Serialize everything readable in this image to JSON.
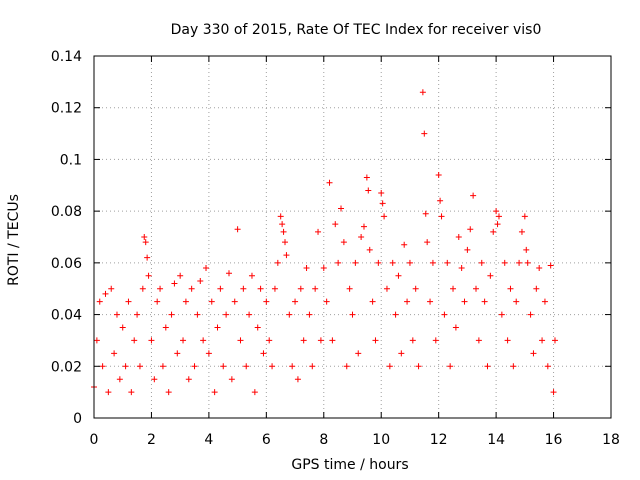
{
  "chart_data": {
    "type": "scatter",
    "title": "Day 330 of 2015, Rate Of TEC Index for receiver vis0",
    "xlabel": "GPS time / hours",
    "ylabel": "ROTI / TECUs",
    "xlim": [
      0,
      18
    ],
    "ylim": [
      0,
      0.14
    ],
    "xticks": [
      0,
      2,
      4,
      6,
      8,
      10,
      12,
      14,
      16,
      18
    ],
    "xtick_labels": [
      "0",
      "2",
      "4",
      "6",
      "8",
      "10",
      "12",
      "14",
      "16",
      "18"
    ],
    "yticks": [
      0,
      0.02,
      0.04,
      0.06,
      0.08,
      0.1,
      0.12,
      0.14
    ],
    "ytick_labels": [
      "0",
      "0.02",
      "0.04",
      "0.06",
      "0.08",
      "0.1",
      "0.12",
      "0.14"
    ],
    "grid": true,
    "marker": "+",
    "color": "#ff0000",
    "series": [
      {
        "name": "ROTI",
        "points": [
          [
            0.0,
            0.012
          ],
          [
            0.1,
            0.03
          ],
          [
            0.2,
            0.045
          ],
          [
            0.3,
            0.02
          ],
          [
            0.4,
            0.048
          ],
          [
            0.5,
            0.01
          ],
          [
            0.6,
            0.05
          ],
          [
            0.7,
            0.025
          ],
          [
            0.8,
            0.04
          ],
          [
            0.9,
            0.015
          ],
          [
            1.0,
            0.035
          ],
          [
            1.1,
            0.02
          ],
          [
            1.2,
            0.045
          ],
          [
            1.3,
            0.01
          ],
          [
            1.4,
            0.03
          ],
          [
            1.5,
            0.04
          ],
          [
            1.6,
            0.02
          ],
          [
            1.7,
            0.05
          ],
          [
            1.75,
            0.07
          ],
          [
            1.8,
            0.068
          ],
          [
            1.85,
            0.062
          ],
          [
            1.9,
            0.055
          ],
          [
            2.0,
            0.03
          ],
          [
            2.1,
            0.015
          ],
          [
            2.2,
            0.045
          ],
          [
            2.3,
            0.05
          ],
          [
            2.4,
            0.02
          ],
          [
            2.5,
            0.035
          ],
          [
            2.6,
            0.01
          ],
          [
            2.7,
            0.04
          ],
          [
            2.8,
            0.052
          ],
          [
            2.9,
            0.025
          ],
          [
            3.0,
            0.055
          ],
          [
            3.1,
            0.03
          ],
          [
            3.2,
            0.045
          ],
          [
            3.3,
            0.015
          ],
          [
            3.4,
            0.05
          ],
          [
            3.5,
            0.02
          ],
          [
            3.6,
            0.04
          ],
          [
            3.7,
            0.053
          ],
          [
            3.8,
            0.03
          ],
          [
            3.9,
            0.058
          ],
          [
            4.0,
            0.025
          ],
          [
            4.1,
            0.045
          ],
          [
            4.2,
            0.01
          ],
          [
            4.3,
            0.035
          ],
          [
            4.4,
            0.05
          ],
          [
            4.5,
            0.02
          ],
          [
            4.6,
            0.04
          ],
          [
            4.7,
            0.056
          ],
          [
            4.8,
            0.015
          ],
          [
            4.9,
            0.045
          ],
          [
            5.0,
            0.073
          ],
          [
            5.1,
            0.03
          ],
          [
            5.2,
            0.05
          ],
          [
            5.3,
            0.02
          ],
          [
            5.4,
            0.04
          ],
          [
            5.5,
            0.055
          ],
          [
            5.6,
            0.01
          ],
          [
            5.7,
            0.035
          ],
          [
            5.8,
            0.05
          ],
          [
            5.9,
            0.025
          ],
          [
            6.0,
            0.045
          ],
          [
            6.1,
            0.03
          ],
          [
            6.2,
            0.02
          ],
          [
            6.3,
            0.05
          ],
          [
            6.4,
            0.06
          ],
          [
            6.5,
            0.078
          ],
          [
            6.55,
            0.075
          ],
          [
            6.6,
            0.072
          ],
          [
            6.65,
            0.068
          ],
          [
            6.7,
            0.063
          ],
          [
            6.8,
            0.04
          ],
          [
            6.9,
            0.02
          ],
          [
            7.0,
            0.045
          ],
          [
            7.1,
            0.015
          ],
          [
            7.2,
            0.05
          ],
          [
            7.3,
            0.03
          ],
          [
            7.4,
            0.058
          ],
          [
            7.5,
            0.04
          ],
          [
            7.6,
            0.02
          ],
          [
            7.7,
            0.05
          ],
          [
            7.8,
            0.072
          ],
          [
            7.9,
            0.03
          ],
          [
            8.0,
            0.058
          ],
          [
            8.1,
            0.045
          ],
          [
            8.2,
            0.091
          ],
          [
            8.3,
            0.03
          ],
          [
            8.4,
            0.075
          ],
          [
            8.5,
            0.06
          ],
          [
            8.6,
            0.081
          ],
          [
            8.7,
            0.068
          ],
          [
            8.8,
            0.02
          ],
          [
            8.9,
            0.05
          ],
          [
            9.0,
            0.04
          ],
          [
            9.1,
            0.06
          ],
          [
            9.2,
            0.025
          ],
          [
            9.3,
            0.07
          ],
          [
            9.4,
            0.074
          ],
          [
            9.5,
            0.093
          ],
          [
            9.55,
            0.088
          ],
          [
            9.6,
            0.065
          ],
          [
            9.7,
            0.045
          ],
          [
            9.8,
            0.03
          ],
          [
            9.9,
            0.06
          ],
          [
            10.0,
            0.087
          ],
          [
            10.05,
            0.083
          ],
          [
            10.1,
            0.078
          ],
          [
            10.2,
            0.05
          ],
          [
            10.3,
            0.02
          ],
          [
            10.4,
            0.06
          ],
          [
            10.5,
            0.04
          ],
          [
            10.6,
            0.055
          ],
          [
            10.7,
            0.025
          ],
          [
            10.8,
            0.067
          ],
          [
            10.9,
            0.045
          ],
          [
            11.0,
            0.06
          ],
          [
            11.1,
            0.03
          ],
          [
            11.2,
            0.05
          ],
          [
            11.3,
            0.02
          ],
          [
            11.45,
            0.126
          ],
          [
            11.5,
            0.11
          ],
          [
            11.55,
            0.079
          ],
          [
            11.6,
            0.068
          ],
          [
            11.7,
            0.045
          ],
          [
            11.8,
            0.06
          ],
          [
            11.9,
            0.03
          ],
          [
            12.0,
            0.094
          ],
          [
            12.05,
            0.084
          ],
          [
            12.1,
            0.078
          ],
          [
            12.2,
            0.04
          ],
          [
            12.3,
            0.06
          ],
          [
            12.4,
            0.02
          ],
          [
            12.5,
            0.05
          ],
          [
            12.6,
            0.035
          ],
          [
            12.7,
            0.07
          ],
          [
            12.8,
            0.058
          ],
          [
            12.9,
            0.045
          ],
          [
            13.0,
            0.065
          ],
          [
            13.1,
            0.073
          ],
          [
            13.2,
            0.086
          ],
          [
            13.3,
            0.05
          ],
          [
            13.4,
            0.03
          ],
          [
            13.5,
            0.06
          ],
          [
            13.6,
            0.045
          ],
          [
            13.7,
            0.02
          ],
          [
            13.8,
            0.055
          ],
          [
            13.9,
            0.072
          ],
          [
            14.0,
            0.08
          ],
          [
            14.05,
            0.075
          ],
          [
            14.1,
            0.078
          ],
          [
            14.2,
            0.04
          ],
          [
            14.3,
            0.06
          ],
          [
            14.4,
            0.03
          ],
          [
            14.5,
            0.05
          ],
          [
            14.6,
            0.02
          ],
          [
            14.7,
            0.045
          ],
          [
            14.8,
            0.06
          ],
          [
            14.9,
            0.072
          ],
          [
            15.0,
            0.078
          ],
          [
            15.05,
            0.065
          ],
          [
            15.1,
            0.06
          ],
          [
            15.2,
            0.04
          ],
          [
            15.3,
            0.025
          ],
          [
            15.4,
            0.05
          ],
          [
            15.5,
            0.058
          ],
          [
            15.6,
            0.03
          ],
          [
            15.7,
            0.045
          ],
          [
            15.8,
            0.02
          ],
          [
            15.9,
            0.059
          ],
          [
            16.0,
            0.01
          ],
          [
            16.05,
            0.03
          ]
        ]
      }
    ]
  }
}
